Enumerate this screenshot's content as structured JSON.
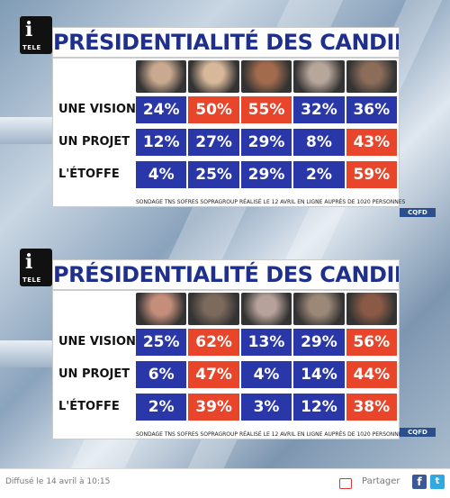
{
  "brand": {
    "logo_letter": "i",
    "logo_text": "TELE",
    "badge": "CQFD"
  },
  "panels": [
    {
      "title": "PRÉSIDENTIALITÉ DES CANDIDATS",
      "source": "SONDAGE TNS SOFRES SOPRAGROUP RÉALISÉ LE 12 AVRIL EN LIGNE AUPRÈS DE 1020 PERSONNES",
      "rows": [
        {
          "label": "UNE VISION",
          "values": [
            "24%",
            "50%",
            "55%",
            "32%",
            "36%"
          ],
          "colors": [
            "blue",
            "red",
            "red",
            "blue",
            "blue"
          ]
        },
        {
          "label": "UN PROJET",
          "values": [
            "12%",
            "27%",
            "29%",
            "8%",
            "43%"
          ],
          "colors": [
            "blue",
            "blue",
            "blue",
            "blue",
            "red"
          ]
        },
        {
          "label": "L'ÉTOFFE",
          "values": [
            "4%",
            "25%",
            "29%",
            "2%",
            "59%"
          ],
          "colors": [
            "blue",
            "blue",
            "blue",
            "blue",
            "red"
          ]
        }
      ],
      "photo_colors": [
        "#c9a98f",
        "#d8b89a",
        "#a36b4e",
        "#b7a69a",
        "#8c6d5a"
      ]
    },
    {
      "title": "PRÉSIDENTIALITÉ DES CANDIDATS",
      "source": "SONDAGE TNS SOFRES SOPRAGROUP RÉALISÉ LE 12 AVRIL EN LIGNE AUPRÈS DE 1020 PERSONNES",
      "rows": [
        {
          "label": "UNE VISION",
          "values": [
            "25%",
            "62%",
            "13%",
            "29%",
            "56%"
          ],
          "colors": [
            "blue",
            "red",
            "blue",
            "blue",
            "red"
          ]
        },
        {
          "label": "UN PROJET",
          "values": [
            "6%",
            "47%",
            "4%",
            "14%",
            "44%"
          ],
          "colors": [
            "blue",
            "red",
            "blue",
            "blue",
            "red"
          ]
        },
        {
          "label": "L'ÉTOFFE",
          "values": [
            "2%",
            "39%",
            "3%",
            "12%",
            "38%"
          ],
          "colors": [
            "blue",
            "red",
            "blue",
            "blue",
            "red"
          ]
        }
      ],
      "photo_colors": [
        "#c48e7a",
        "#7c6a5c",
        "#b6a29a",
        "#9c8877",
        "#8b5a46"
      ]
    }
  ],
  "footer": {
    "broadcast": "Diffusé le 14 avril à 10:15",
    "share_label": "Partager",
    "facebook": "f",
    "twitter": "t"
  }
}
